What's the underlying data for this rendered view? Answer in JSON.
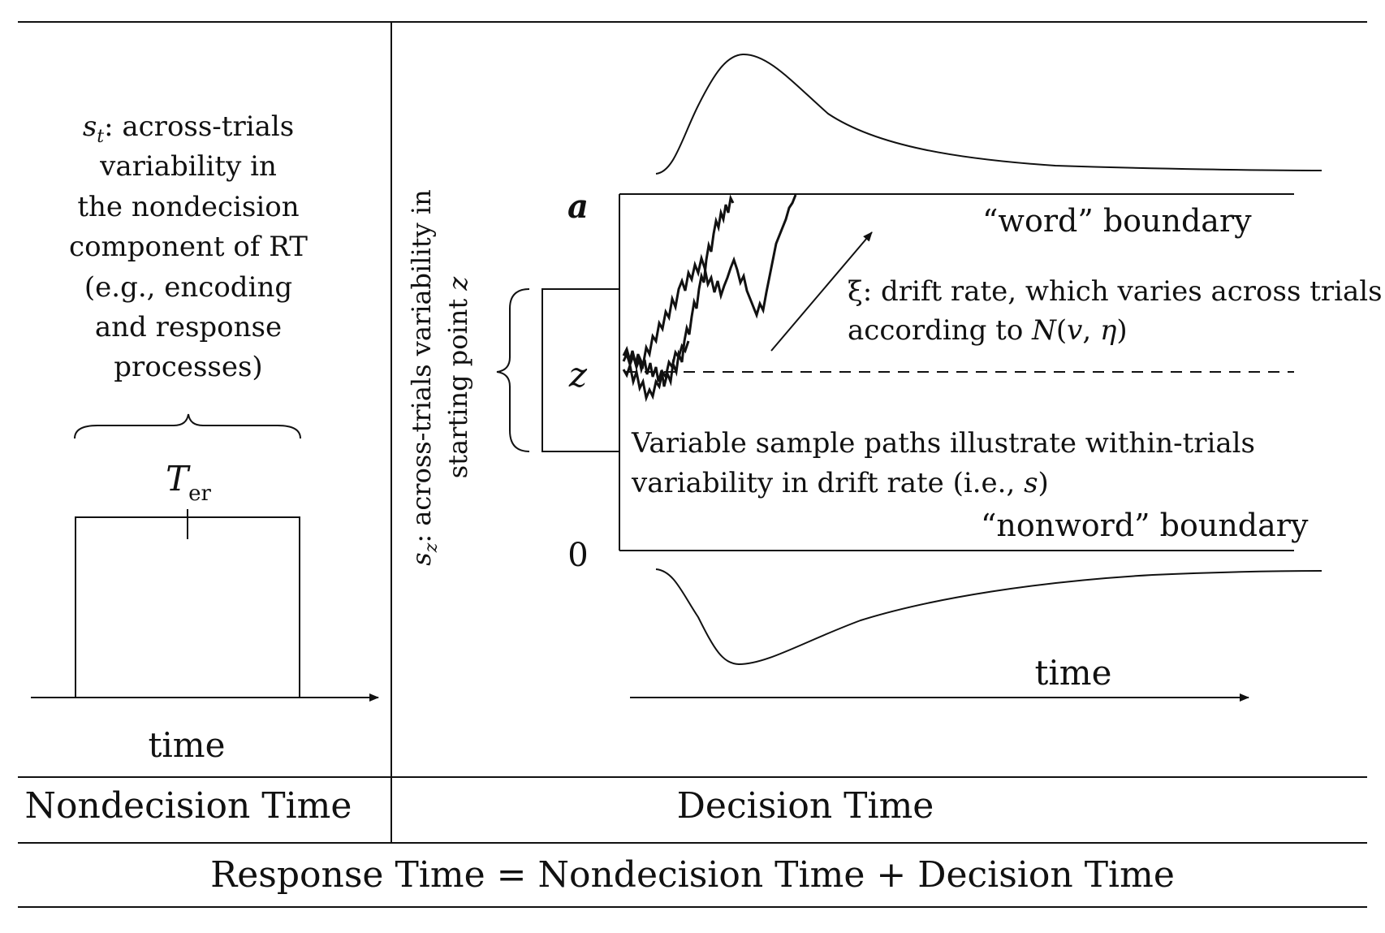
{
  "left_panel": {
    "st_symbol": "s",
    "st_subscript": "t",
    "st_lines": [
      ": across-trials",
      "variability in",
      "the nondecision",
      "component of RT",
      "(e.g., encoding",
      "and response",
      "processes)"
    ],
    "ter_symbol": "T",
    "ter_subscript": "er",
    "time_label": "time",
    "panel_label": "Nondecision Time"
  },
  "vertical_label": {
    "symbol": "s",
    "subscript": "z",
    "line1": ": across-trials variability in",
    "line2_prefix": "starting point ",
    "line2_var": "z"
  },
  "right_panel": {
    "a_label": "a",
    "z_label": "z",
    "zero_label": "0",
    "word_boundary": "“word” boundary",
    "nonword_boundary": "“nonword” boundary",
    "drift_line1": "ξ: drift rate, which varies across trials",
    "drift_line2_prefix": "according to ",
    "drift_line2_N": "N",
    "drift_line2_open": "(",
    "drift_line2_v": "v",
    "drift_line2_comma": ", ",
    "drift_line2_eta": "η",
    "drift_line2_close": ")",
    "paths_line1": "Variable sample paths illustrate within-trials",
    "paths_line2_prefix": "variability in drift rate (i.e., ",
    "paths_line2_s": "s",
    "paths_line2_suffix": ")",
    "time_label": "time",
    "panel_label": "Decision Time"
  },
  "footer": {
    "equation": "Response Time = Nondecision Time + Decision Time"
  }
}
